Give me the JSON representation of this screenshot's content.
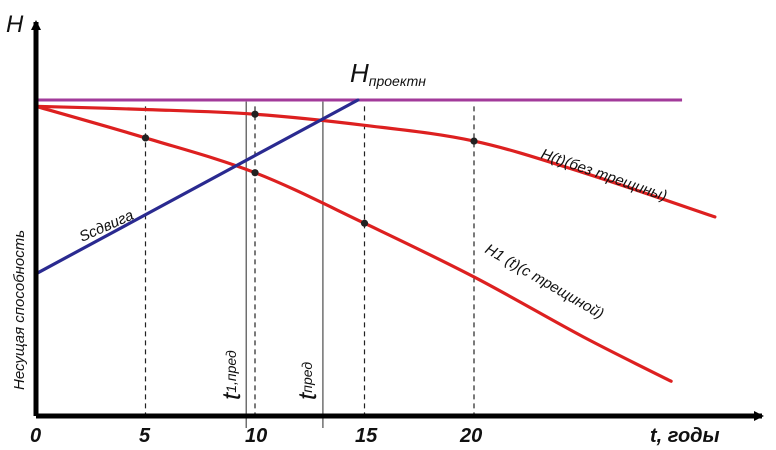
{
  "chart_data": {
    "type": "line",
    "ylabel": "Несущая способность",
    "y_axis_letter": "H",
    "xlabel": "t, годы",
    "x_ticks": [
      "0",
      "5",
      "10",
      "15",
      "20"
    ],
    "x_range": [
      0,
      32
    ],
    "y_range": [
      0,
      1
    ],
    "series": [
      {
        "name": "H(t)(без трещины)",
        "color": "#dd2020",
        "x": [
          0,
          5,
          10,
          15,
          20,
          25,
          31
        ],
        "y": [
          0.98,
          0.97,
          0.955,
          0.92,
          0.87,
          0.77,
          0.63
        ]
      },
      {
        "name": "H1 (t)(с трещиной)",
        "color": "#dd2020",
        "x": [
          0,
          5,
          10,
          15,
          20,
          25,
          29
        ],
        "y": [
          0.98,
          0.88,
          0.77,
          0.61,
          0.44,
          0.25,
          0.11
        ]
      },
      {
        "name": "Sсдвига",
        "color": "#2a2a90",
        "x": [
          0,
          14.7
        ],
        "y": [
          0.45,
          1.0
        ]
      }
    ],
    "h_design": {
      "label_main": "H",
      "label_sub": "проектн",
      "value": 1.0,
      "x_end": 29.5,
      "color": "#a23a9a"
    },
    "markers": {
      "x": [
        5,
        10,
        10,
        15,
        20
      ],
      "y": [
        0.88,
        0.955,
        0.77,
        0.61,
        0.87
      ]
    },
    "t_pred_1": {
      "label_main": "t",
      "label_sub": "1,пред",
      "x": 9.6
    },
    "t_pred": {
      "label_main": "t",
      "label_sub": "пред",
      "x": 13.1
    }
  }
}
